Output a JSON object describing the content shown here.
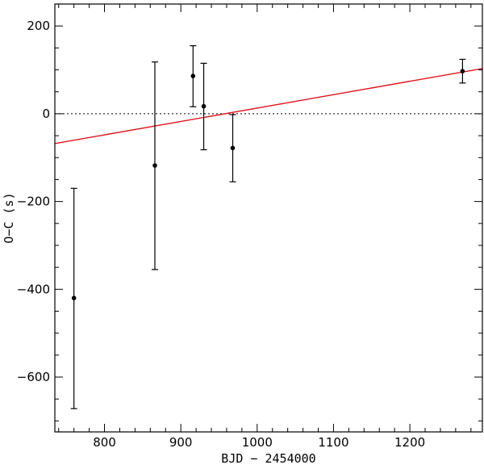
{
  "chart_data": {
    "type": "scatter",
    "xlabel": "BJD − 2454000",
    "ylabel": "O−C (s)",
    "xlim": [
      735,
      1295
    ],
    "ylim": [
      -725,
      250
    ],
    "x_ticks": [
      800,
      900,
      1000,
      1100,
      1200
    ],
    "x_tick_labels": [
      "800",
      "900",
      "1000",
      "1100",
      "1200"
    ],
    "y_ticks": [
      -600,
      -400,
      -200,
      0,
      200
    ],
    "y_tick_labels": [
      "−600",
      "−400",
      "−200",
      "0",
      "200"
    ],
    "grid": false,
    "points": [
      {
        "x": 760,
        "y": -420,
        "err_low": -672,
        "err_high": -170
      },
      {
        "x": 866,
        "y": -118,
        "err_low": -355,
        "err_high": 118
      },
      {
        "x": 916,
        "y": 86,
        "err_low": 16,
        "err_high": 155
      },
      {
        "x": 930,
        "y": 17,
        "err_low": -82,
        "err_high": 115
      },
      {
        "x": 968,
        "y": -78,
        "err_low": -155,
        "err_high": -2
      },
      {
        "x": 1269,
        "y": 97,
        "err_low": 70,
        "err_high": 124
      }
    ],
    "zero_line": {
      "y": 0,
      "style": "dotted",
      "color": "#000000"
    },
    "fit_line": {
      "x": [
        735,
        1295
      ],
      "y": [
        -68,
        103
      ],
      "color": "#e0141e"
    },
    "marker_color": "#000000"
  }
}
